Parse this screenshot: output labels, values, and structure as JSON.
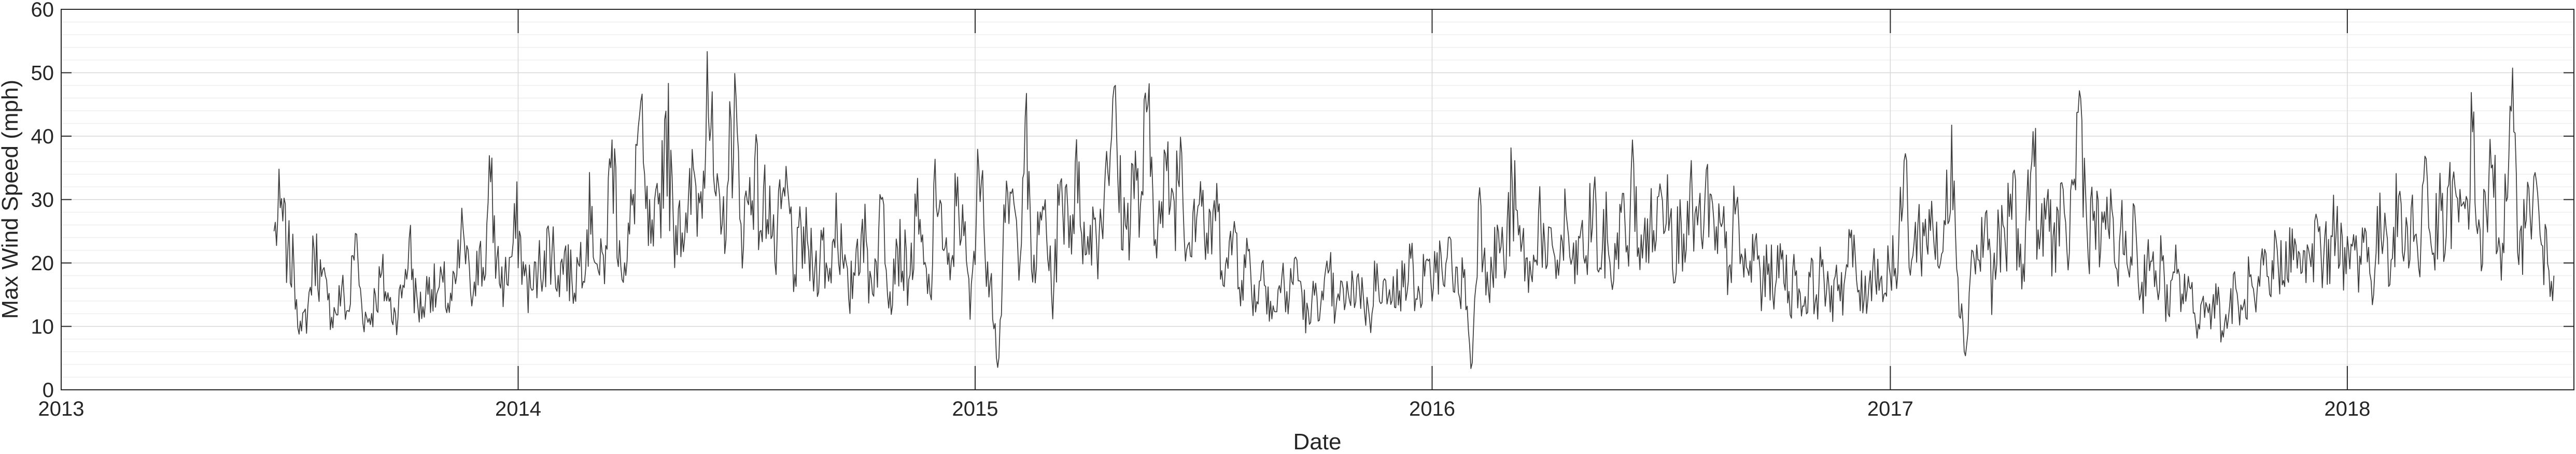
{
  "chart_data": {
    "type": "line",
    "title": "",
    "xlabel": "Date",
    "ylabel": "Max Wind Speed (mph)",
    "xlim": [
      "2013-01-01",
      "2018-07-01"
    ],
    "ylim": [
      0,
      60
    ],
    "x_ticks": [
      "2013",
      "2014",
      "2015",
      "2016",
      "2017",
      "2018"
    ],
    "y_ticks": [
      0,
      10,
      20,
      30,
      40,
      50,
      60
    ],
    "grid": true,
    "minor_grid": true,
    "line_color": "#404040",
    "series": [
      {
        "x_start": "2013-06-20",
        "x_end": "2018-06-15",
        "sampling": "weekly",
        "values": [
          25,
          29,
          22,
          19,
          9,
          13,
          23,
          18,
          14,
          12,
          16,
          12,
          25,
          13,
          11,
          15,
          18,
          14,
          12,
          16,
          24,
          14,
          13,
          18,
          15,
          17,
          13,
          18,
          26,
          15,
          22,
          19,
          33,
          20,
          17,
          21,
          27,
          18,
          16,
          19,
          22,
          24,
          18,
          22,
          17,
          20,
          25,
          29,
          18,
          22,
          40,
          24,
          18,
          30,
          44,
          28,
          22,
          31,
          45,
          26,
          30,
          24,
          35,
          29,
          54,
          33,
          24,
          32,
          47,
          26,
          30,
          37,
          25,
          34,
          20,
          29,
          31,
          18,
          25,
          22,
          19,
          24,
          17,
          30,
          21,
          14,
          22,
          27,
          18,
          20,
          31,
          15,
          24,
          21,
          18,
          28,
          20,
          15,
          36,
          22,
          17,
          34,
          24,
          12,
          38,
          25,
          19,
          3,
          26,
          31,
          22,
          44,
          18,
          24,
          30,
          14,
          29,
          32,
          27,
          36,
          20,
          29,
          24,
          37,
          46,
          31,
          25,
          36,
          28,
          44,
          32,
          26,
          35,
          29,
          40,
          24,
          30,
          33,
          21,
          30,
          24,
          19,
          27,
          17,
          22,
          14,
          20,
          16,
          12,
          18,
          14,
          21,
          15,
          10,
          17,
          13,
          19,
          12,
          16,
          14,
          18,
          15,
          11,
          20,
          17,
          13,
          19,
          16,
          21,
          14,
          18,
          17,
          22,
          16,
          24,
          15,
          19,
          2,
          30,
          22,
          18,
          25,
          20,
          33,
          24,
          21,
          17,
          31,
          19,
          23,
          20,
          28,
          18,
          24,
          21,
          32,
          19,
          26,
          17,
          30,
          22,
          36,
          20,
          27,
          25,
          31,
          34,
          23,
          26,
          30,
          28,
          24,
          32,
          22,
          26,
          19,
          28,
          21,
          18,
          24,
          16,
          20,
          17,
          22,
          15,
          19,
          13,
          18,
          15,
          21,
          12,
          20,
          16,
          24,
          17,
          14,
          19,
          21,
          15,
          23,
          18,
          37,
          20,
          26,
          24,
          30,
          19,
          25,
          42,
          18,
          5,
          23,
          20,
          28,
          16,
          25,
          22,
          35,
          19,
          26,
          41,
          21,
          30,
          24,
          28,
          22,
          33,
          47,
          25,
          29,
          22,
          31,
          20,
          26,
          18,
          29,
          14,
          24,
          16,
          21,
          12,
          19,
          15,
          18,
          10,
          14,
          12,
          17,
          9,
          13,
          16,
          11,
          18,
          12,
          20,
          15,
          24,
          17,
          26,
          19,
          22,
          18,
          27,
          20,
          24,
          29,
          18,
          23,
          21,
          26,
          17,
          24,
          28,
          20,
          31,
          22,
          30,
          19,
          38,
          21,
          28,
          24,
          33,
          26,
          30,
          41,
          23,
          28,
          36,
          22,
          30,
          42,
          25,
          27,
          34,
          24,
          20,
          18
        ]
      }
    ]
  }
}
